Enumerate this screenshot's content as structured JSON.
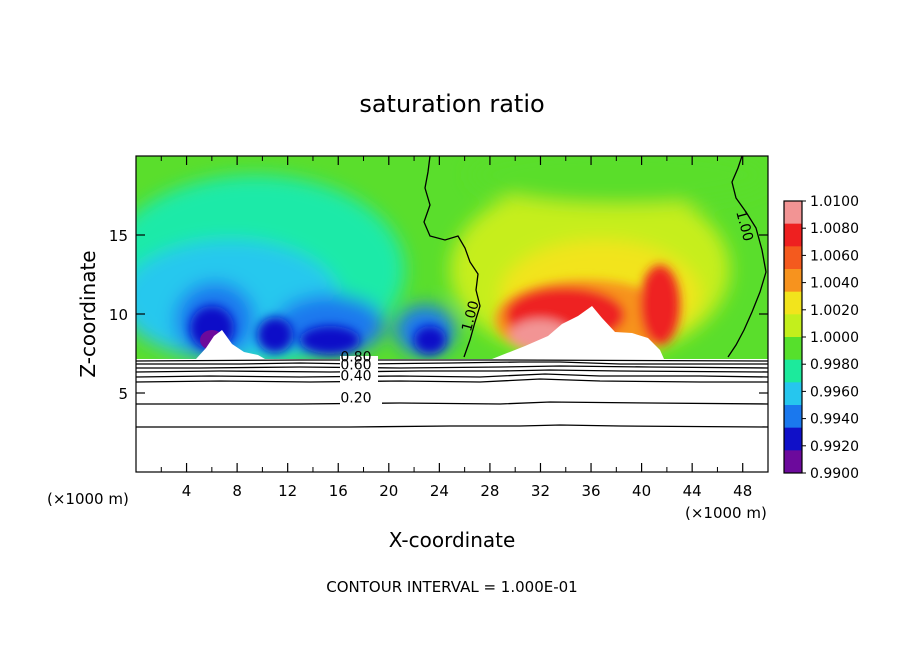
{
  "chart_data": {
    "type": "heatmap",
    "title": "saturation ratio",
    "xlabel": "X-coordinate",
    "ylabel": "Z-coordinate",
    "x_unit": "(×1000 m)",
    "x_unit_right": "(×1000 m)",
    "footnote": "CONTOUR INTERVAL = 1.000E-01",
    "xlim": [
      0,
      50
    ],
    "ylim": [
      0,
      20
    ],
    "x_ticks": [
      "4",
      "8",
      "12",
      "16",
      "20",
      "24",
      "28",
      "32",
      "36",
      "40",
      "44",
      "48"
    ],
    "y_ticks": [
      "5",
      "10",
      "15"
    ],
    "colorbar": {
      "min": 0.99,
      "max": 1.01,
      "labels": [
        "1.0100",
        "1.0080",
        "1.0060",
        "1.0040",
        "1.0020",
        "1.0000",
        "0.9980",
        "0.9960",
        "0.9940",
        "0.9920",
        "0.9900"
      ],
      "colors": [
        "#f29494",
        "#ee2020",
        "#f45a1e",
        "#f7931e",
        "#f2e41c",
        "#c3ef1c",
        "#56e02c",
        "#1cea9c",
        "#26c6ee",
        "#1a78ee",
        "#1010c8",
        "#6c0a9c"
      ]
    },
    "contour_labels": [
      {
        "text": "1.00",
        "x": 26.8,
        "y": 9.8
      },
      {
        "text": "1.00",
        "x": 47.8,
        "y": 15.5
      },
      {
        "text": "0.80",
        "x": 17.4,
        "y": 7.0
      },
      {
        "text": "0.60",
        "x": 17.4,
        "y": 6.5
      },
      {
        "text": "0.40",
        "x": 17.4,
        "y": 5.8
      },
      {
        "text": "0.20",
        "x": 17.4,
        "y": 4.4
      }
    ],
    "cloud_base_z": 7.3,
    "contour_levels": [
      0.2,
      0.4,
      0.6,
      0.8,
      1.0
    ],
    "notes": {
      "left_region": "subsaturated (blue, minimum ~0.990 near x=6, z=8-10)",
      "right_region": "supersaturated (red, maximum ~1.008 near x=34-38, z=10-12)"
    }
  }
}
